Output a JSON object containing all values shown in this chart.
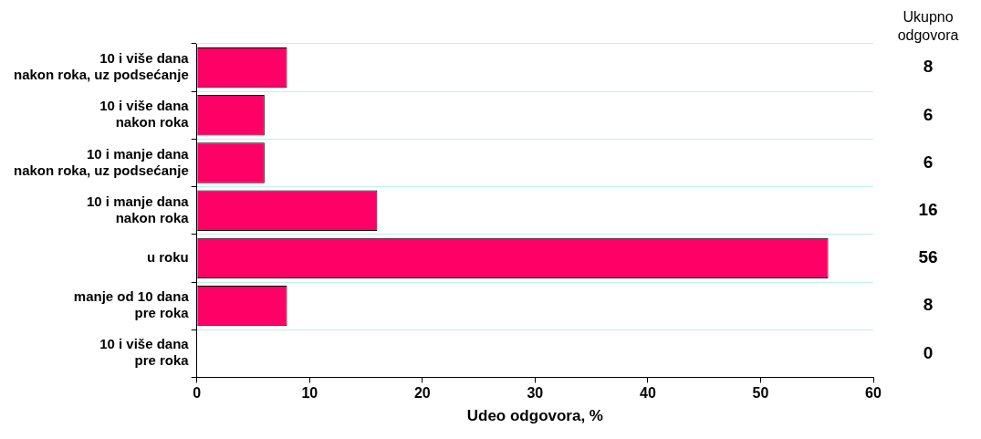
{
  "chart_data": {
    "type": "bar",
    "orientation": "horizontal",
    "categories": [
      "10 i više dana\nnakon roka, uz podsećanje",
      "10 i više dana\nnakon roka",
      "10 i manje dana\nnakon roka, uz podsećanje",
      "10 i manje dana\nnakon roka",
      "u roku",
      "manje od 10 dana\npre roka",
      "10 i više dana\npre roka"
    ],
    "values": [
      8,
      6,
      6,
      16,
      56,
      8,
      0
    ],
    "color": "#ff0066",
    "xlabel": "Udeo odgovora, %",
    "xlim": [
      0,
      60
    ],
    "xticks": [
      0,
      10,
      20,
      30,
      40,
      50,
      60
    ],
    "grid": "y",
    "data_labels": true,
    "annotations": [
      "Ukupno\nodgovora"
    ]
  }
}
